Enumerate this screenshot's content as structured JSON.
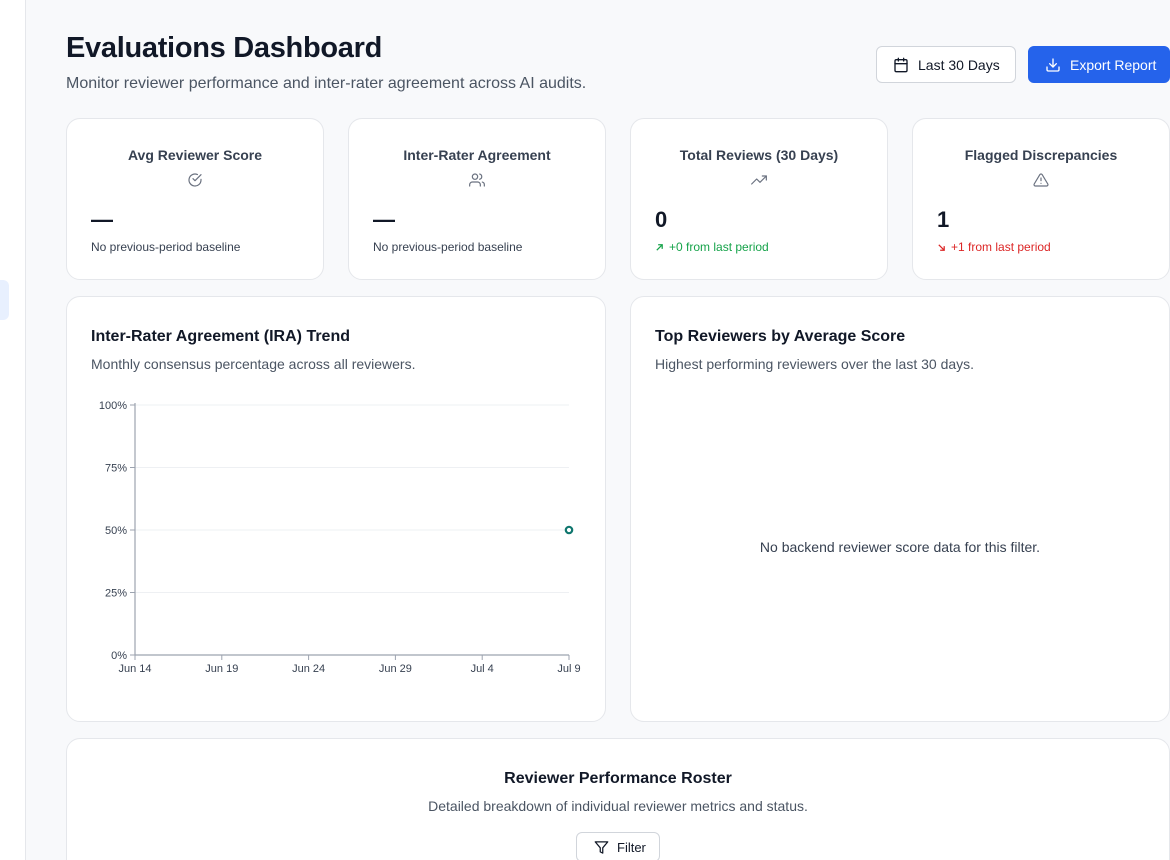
{
  "header": {
    "title": "Evaluations Dashboard",
    "subtitle": "Monitor reviewer performance and inter-rater agreement across AI audits.",
    "date_range_label": "Last 30 Days",
    "export_label": "Export Report",
    "accent_color": "#2563eb"
  },
  "stats": [
    {
      "label": "Avg Reviewer Score",
      "icon": "check-circle-icon",
      "value": "—",
      "note": "No previous-period baseline"
    },
    {
      "label": "Inter-Rater Agreement",
      "icon": "users-icon",
      "value": "—",
      "note": "No previous-period baseline"
    },
    {
      "label": "Total Reviews (30 Days)",
      "icon": "trending-up-icon",
      "value": "0",
      "note": "+0 from last period",
      "trend": "up",
      "trend_color": "#16a34a"
    },
    {
      "label": "Flagged Discrepancies",
      "icon": "alert-triangle-icon",
      "value": "1",
      "note": "+1 from last period",
      "trend": "down",
      "trend_color": "#dc2626"
    }
  ],
  "ira_panel": {
    "title": "Inter-Rater Agreement (IRA) Trend",
    "subtitle": "Monthly consensus percentage across all reviewers."
  },
  "chart_data": {
    "type": "line",
    "title": "",
    "xlabel": "",
    "ylabel": "",
    "x_ticks": [
      "Jun 14",
      "Jun 19",
      "Jun 24",
      "Jun 29",
      "Jul 4",
      "Jul 9"
    ],
    "y_ticks": [
      "0%",
      "25%",
      "50%",
      "75%",
      "100%"
    ],
    "xlim": [
      "Jun 14",
      "Jul 9"
    ],
    "ylim": [
      0,
      100
    ],
    "grid": true,
    "series": [
      {
        "color": "#0f766e",
        "points": [
          {
            "x": "Jul 9",
            "y": 50
          }
        ]
      }
    ]
  },
  "top_reviewers_panel": {
    "title": "Top Reviewers by Average Score",
    "subtitle": "Highest performing reviewers over the last 30 days.",
    "empty_message": "No backend reviewer score data for this filter."
  },
  "roster": {
    "title": "Reviewer Performance Roster",
    "subtitle": "Detailed breakdown of individual reviewer metrics and status.",
    "filter_label": "Filter"
  }
}
